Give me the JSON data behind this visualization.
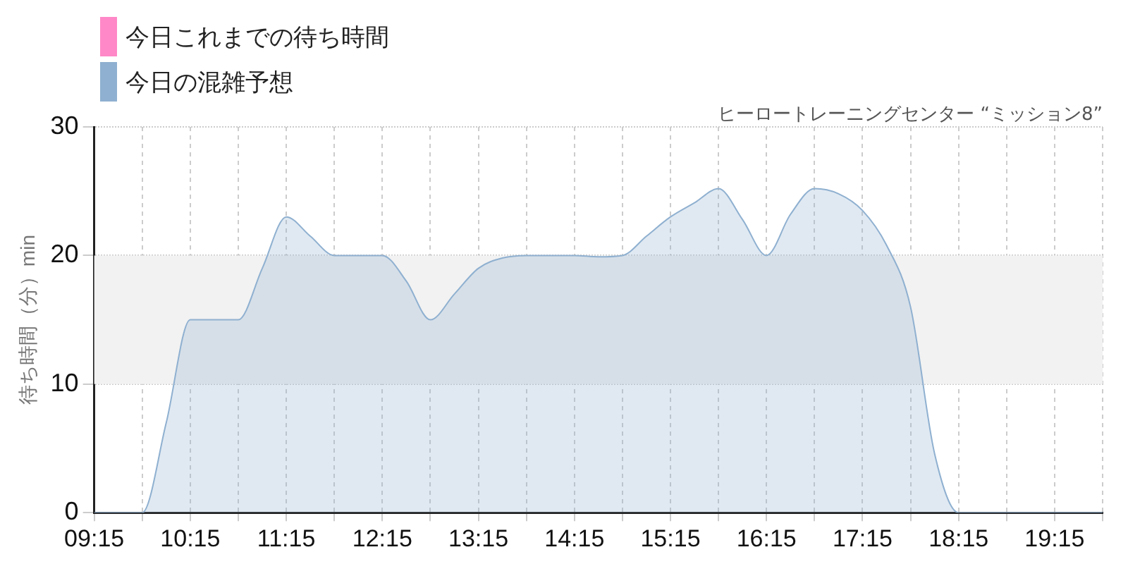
{
  "chart_data": {
    "type": "area",
    "subtitle": "ヒーロートレーニングセンター “ミッション8”",
    "ylabel": "待ち時間（分）min",
    "x": [
      9.25,
      9.5,
      9.75,
      10.0,
      10.25,
      10.5,
      10.75,
      11.0,
      11.25,
      11.5,
      11.75,
      12.0,
      12.25,
      12.5,
      12.75,
      13.0,
      13.25,
      13.5,
      13.75,
      14.0,
      14.25,
      14.5,
      14.75,
      15.0,
      15.25,
      15.5,
      15.75,
      16.0,
      16.25,
      16.5,
      16.75,
      17.0,
      17.25,
      17.5,
      17.75,
      18.0,
      18.25,
      18.5,
      18.75,
      19.0,
      19.25,
      19.5,
      19.75
    ],
    "series": [
      {
        "name": "今日これまでの待ち時間",
        "color": "#ff88c8",
        "values": [
          null,
          null,
          null,
          null,
          null,
          null,
          null,
          null,
          null,
          null,
          null,
          null,
          null,
          null,
          null,
          null,
          null,
          null,
          null,
          null,
          null,
          null,
          null,
          null,
          null,
          null,
          null,
          null,
          null,
          null,
          null,
          null,
          null,
          null,
          null,
          null,
          null,
          null,
          null,
          null,
          null,
          null,
          null
        ]
      },
      {
        "name": "今日の混雑予想",
        "color": "#8fb0d0",
        "values": [
          0,
          0,
          0,
          7,
          15,
          15,
          15,
          19,
          23,
          21.5,
          20,
          20,
          20,
          18,
          15,
          17,
          19,
          19.8,
          20,
          20,
          20,
          19.9,
          20,
          21.5,
          23,
          24.1,
          25.2,
          22.8,
          20,
          23.2,
          25.2,
          24.8,
          23.5,
          20.8,
          16,
          4.6,
          0,
          0,
          0,
          0,
          0,
          0,
          0
        ]
      }
    ],
    "xlim": [
      9.25,
      19.75
    ],
    "xticks": [
      {
        "value": 9.25,
        "label": "09:15"
      },
      {
        "value": 9.75,
        "label": null
      },
      {
        "value": 10.25,
        "label": "10:15"
      },
      {
        "value": 10.75,
        "label": null
      },
      {
        "value": 11.25,
        "label": "11:15"
      },
      {
        "value": 11.75,
        "label": null
      },
      {
        "value": 12.25,
        "label": "12:15"
      },
      {
        "value": 12.75,
        "label": null
      },
      {
        "value": 13.25,
        "label": "13:15"
      },
      {
        "value": 13.75,
        "label": null
      },
      {
        "value": 14.25,
        "label": "14:15"
      },
      {
        "value": 14.75,
        "label": null
      },
      {
        "value": 15.25,
        "label": "15:15"
      },
      {
        "value": 15.75,
        "label": null
      },
      {
        "value": 16.25,
        "label": "16:15"
      },
      {
        "value": 16.75,
        "label": null
      },
      {
        "value": 17.25,
        "label": "17:15"
      },
      {
        "value": 17.75,
        "label": null
      },
      {
        "value": 18.25,
        "label": "18:15"
      },
      {
        "value": 18.75,
        "label": null
      },
      {
        "value": 19.25,
        "label": "19:15"
      },
      {
        "value": 19.75,
        "label": null
      }
    ],
    "ylim": [
      0,
      30
    ],
    "yticks": [
      0,
      10,
      20,
      30
    ],
    "bands": [
      {
        "axis": "y",
        "from": 10,
        "to": 20,
        "color": "#f2f2f2"
      }
    ],
    "grid": true,
    "legend": "top left",
    "marker": "none"
  }
}
